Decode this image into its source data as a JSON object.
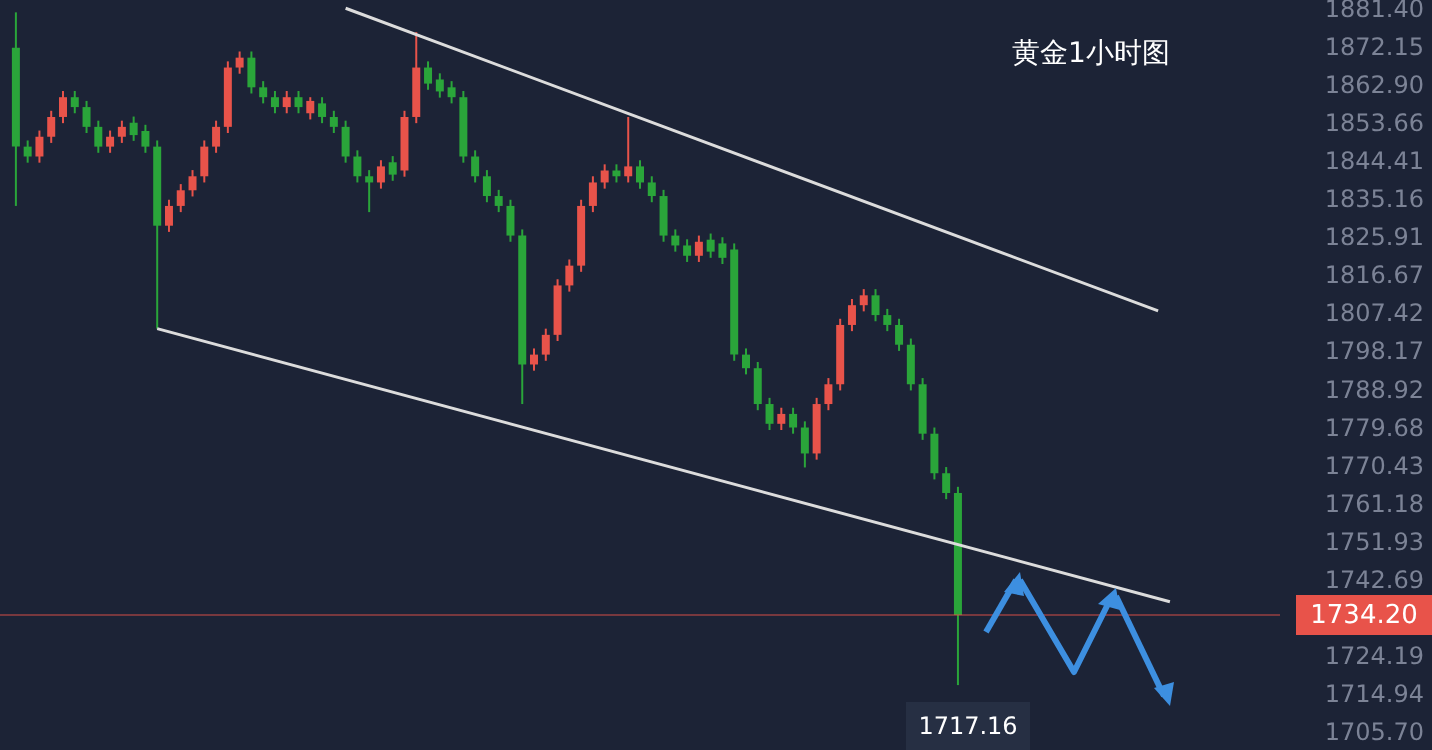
{
  "chart_data": {
    "type": "candlestick",
    "title": "黄金1小时图",
    "categories": [
      null,
      null,
      null,
      null,
      null,
      null,
      null,
      null,
      null,
      null,
      null,
      null,
      null,
      null,
      null,
      null,
      null,
      null,
      null,
      null,
      null,
      null,
      null,
      null,
      null,
      null,
      null,
      null,
      null,
      null,
      null,
      null,
      null,
      null,
      null,
      null,
      null,
      null,
      null,
      null,
      null,
      null,
      null,
      null,
      null,
      null,
      null,
      null,
      null,
      null,
      null,
      null,
      null,
      null,
      null,
      null,
      null,
      null,
      null,
      null,
      null,
      null,
      null,
      null,
      null,
      null,
      null,
      null,
      null,
      null,
      null,
      null,
      null,
      null,
      null,
      null,
      null,
      null,
      null,
      null,
      null,
      null,
      null,
      null,
      null,
      null,
      null,
      null,
      null,
      null,
      null,
      null,
      null,
      null,
      null,
      null,
      null,
      null,
      null,
      null,
      null,
      null,
      null,
      null,
      null,
      null,
      null
    ],
    "ohlc": [
      [
        1871.9,
        1880.5,
        1833.5,
        1847.9
      ],
      [
        1847.9,
        1849.4,
        1844.0,
        1845.5
      ],
      [
        1845.5,
        1851.8,
        1844.0,
        1850.3
      ],
      [
        1850.3,
        1856.6,
        1848.8,
        1855.1
      ],
      [
        1855.1,
        1861.4,
        1853.6,
        1859.9
      ],
      [
        1859.9,
        1861.4,
        1856.0,
        1857.5
      ],
      [
        1857.5,
        1859.0,
        1851.2,
        1852.7
      ],
      [
        1852.7,
        1854.2,
        1846.4,
        1847.9
      ],
      [
        1847.9,
        1851.8,
        1846.4,
        1850.3
      ],
      [
        1850.3,
        1854.2,
        1848.8,
        1852.7
      ],
      [
        1853.7,
        1855.2,
        1849.3,
        1850.7
      ],
      [
        1851.7,
        1853.2,
        1846.4,
        1847.9
      ],
      [
        1847.9,
        1849.4,
        1803.7,
        1828.7
      ],
      [
        1828.7,
        1835.0,
        1827.2,
        1833.5
      ],
      [
        1833.5,
        1838.8,
        1832.0,
        1837.3
      ],
      [
        1837.3,
        1842.2,
        1835.8,
        1840.7
      ],
      [
        1840.7,
        1849.4,
        1839.2,
        1847.9
      ],
      [
        1847.9,
        1854.2,
        1846.4,
        1852.7
      ],
      [
        1852.7,
        1868.6,
        1851.2,
        1867.1
      ],
      [
        1867.1,
        1871.0,
        1865.6,
        1869.5
      ],
      [
        1869.5,
        1871.0,
        1860.8,
        1862.3
      ],
      [
        1862.3,
        1863.8,
        1858.4,
        1859.9
      ],
      [
        1859.9,
        1861.4,
        1856.0,
        1857.5
      ],
      [
        1857.5,
        1861.4,
        1856.0,
        1859.9
      ],
      [
        1859.9,
        1861.4,
        1856.0,
        1857.5
      ],
      [
        1856.0,
        1859.9,
        1854.5,
        1859.0
      ],
      [
        1858.4,
        1859.9,
        1853.6,
        1855.1
      ],
      [
        1855.1,
        1856.6,
        1851.2,
        1852.7
      ],
      [
        1852.7,
        1854.2,
        1844.0,
        1845.5
      ],
      [
        1845.5,
        1847.0,
        1839.2,
        1840.7
      ],
      [
        1840.7,
        1842.2,
        1832.0,
        1839.2
      ],
      [
        1839.2,
        1844.6,
        1837.7,
        1843.1
      ],
      [
        1844.1,
        1845.6,
        1839.6,
        1841.1
      ],
      [
        1842.1,
        1856.6,
        1840.6,
        1855.1
      ],
      [
        1855.1,
        1875.7,
        1853.6,
        1867.1
      ],
      [
        1867.1,
        1868.6,
        1861.7,
        1863.2
      ],
      [
        1864.2,
        1865.7,
        1859.8,
        1861.3
      ],
      [
        1862.3,
        1863.8,
        1858.4,
        1859.9
      ],
      [
        1859.9,
        1861.4,
        1844.0,
        1845.5
      ],
      [
        1845.5,
        1847.0,
        1839.2,
        1840.7
      ],
      [
        1840.7,
        1842.2,
        1834.4,
        1835.9
      ],
      [
        1835.9,
        1837.4,
        1832.0,
        1833.5
      ],
      [
        1833.5,
        1835.0,
        1824.8,
        1826.3
      ],
      [
        1826.3,
        1827.8,
        1785.4,
        1795.0
      ],
      [
        1795.0,
        1798.9,
        1793.5,
        1797.4
      ],
      [
        1797.4,
        1803.7,
        1795.9,
        1802.2
      ],
      [
        1802.2,
        1815.7,
        1800.7,
        1814.2
      ],
      [
        1814.2,
        1820.5,
        1812.7,
        1819.0
      ],
      [
        1819.0,
        1835.0,
        1817.5,
        1833.5
      ],
      [
        1833.5,
        1840.7,
        1832.0,
        1839.2
      ],
      [
        1839.2,
        1843.6,
        1837.7,
        1842.1
      ],
      [
        1842.1,
        1843.6,
        1839.2,
        1840.7
      ],
      [
        1840.7,
        1855.1,
        1839.2,
        1843.1
      ],
      [
        1843.1,
        1844.6,
        1837.7,
        1839.2
      ],
      [
        1839.2,
        1840.7,
        1834.4,
        1835.9
      ],
      [
        1835.9,
        1837.4,
        1824.8,
        1826.3
      ],
      [
        1826.3,
        1827.8,
        1822.4,
        1823.9
      ],
      [
        1823.9,
        1825.4,
        1819.9,
        1821.4
      ],
      [
        1821.4,
        1826.3,
        1819.9,
        1824.8
      ],
      [
        1825.3,
        1826.8,
        1820.9,
        1822.4
      ],
      [
        1824.4,
        1825.9,
        1819.4,
        1820.9
      ],
      [
        1822.9,
        1824.4,
        1795.9,
        1797.4
      ],
      [
        1797.4,
        1798.9,
        1792.6,
        1794.1
      ],
      [
        1794.1,
        1795.6,
        1783.9,
        1785.4
      ],
      [
        1785.4,
        1786.9,
        1779.1,
        1780.6
      ],
      [
        1780.6,
        1784.5,
        1779.1,
        1783.0
      ],
      [
        1783.0,
        1784.5,
        1778.2,
        1779.7
      ],
      [
        1779.7,
        1781.2,
        1770.0,
        1773.4
      ],
      [
        1773.4,
        1786.9,
        1771.9,
        1785.4
      ],
      [
        1785.4,
        1791.7,
        1783.9,
        1790.2
      ],
      [
        1790.2,
        1806.1,
        1788.7,
        1804.6
      ],
      [
        1804.6,
        1810.9,
        1803.1,
        1809.4
      ],
      [
        1809.4,
        1813.3,
        1807.9,
        1811.8
      ],
      [
        1811.8,
        1813.3,
        1805.5,
        1807.0
      ],
      [
        1807.0,
        1808.5,
        1803.1,
        1804.6
      ],
      [
        1804.6,
        1806.1,
        1798.3,
        1799.8
      ],
      [
        1799.8,
        1801.3,
        1788.7,
        1790.2
      ],
      [
        1790.2,
        1791.7,
        1776.7,
        1778.2
      ],
      [
        1778.2,
        1779.7,
        1767.1,
        1768.6
      ],
      [
        1768.6,
        1770.1,
        1762.3,
        1763.8
      ],
      [
        1763.8,
        1765.3,
        1717.16,
        1734.2
      ],
      null,
      null,
      null,
      null,
      null,
      null,
      null,
      null,
      null,
      null,
      null,
      null,
      null,
      null,
      null,
      null,
      null,
      null,
      null,
      null,
      null,
      null,
      null,
      null,
      null,
      null
    ],
    "colors": [
      "#2aa53a",
      "#2aa53a",
      "#e8534a",
      "#e8534a",
      "#e8534a",
      "#2aa53a",
      "#2aa53a",
      "#2aa53a",
      "#e8534a",
      "#e8534a",
      "#2aa53a",
      "#2aa53a",
      "#2aa53a",
      "#e8534a",
      "#e8534a",
      "#e8534a",
      "#e8534a",
      "#e8534a",
      "#e8534a",
      "#e8534a",
      "#2aa53a",
      "#2aa53a",
      "#2aa53a",
      "#e8534a",
      "#2aa53a",
      "#e8534a",
      "#2aa53a",
      "#2aa53a",
      "#2aa53a",
      "#2aa53a",
      "#2aa53a",
      "#e8534a",
      "#2aa53a",
      "#e8534a",
      "#e8534a",
      "#2aa53a",
      "#2aa53a",
      "#2aa53a",
      "#2aa53a",
      "#2aa53a",
      "#2aa53a",
      "#2aa53a",
      "#2aa53a",
      "#2aa53a",
      "#e8534a",
      "#e8534a",
      "#e8534a",
      "#e8534a",
      "#e8534a",
      "#e8534a",
      "#e8534a",
      "#2aa53a",
      "#e8534a",
      "#2aa53a",
      "#2aa53a",
      "#2aa53a",
      "#2aa53a",
      "#2aa53a",
      "#e8534a",
      "#2aa53a",
      "#2aa53a",
      "#2aa53a",
      "#2aa53a",
      "#2aa53a",
      "#2aa53a",
      "#e8534a",
      "#2aa53a",
      "#2aa53a",
      "#e8534a",
      "#e8534a",
      "#e8534a",
      "#e8534a",
      "#e8534a",
      "#2aa53a",
      "#2aa53a",
      "#2aa53a",
      "#2aa53a",
      "#2aa53a",
      "#2aa53a",
      "#2aa53a",
      "#2aa53a",
      null,
      null,
      null,
      null,
      null,
      null,
      null,
      null,
      null,
      null,
      null,
      null,
      null,
      null,
      null,
      null,
      null,
      null,
      null,
      null,
      null,
      null,
      null,
      null,
      null,
      null
    ],
    "series": [
      {
        "type": "line",
        "color": "#dcdcdc",
        "values": [
          null,
          null,
          null,
          null,
          null,
          null,
          null,
          null,
          null,
          null,
          null,
          null,
          null,
          null,
          null,
          null,
          null,
          null,
          null,
          null,
          null,
          null,
          null,
          null,
          null,
          null,
          null,
          null,
          1881.5,
          null,
          null,
          null,
          null,
          null,
          null,
          null,
          null,
          null,
          null,
          null,
          null,
          null,
          null,
          null,
          null,
          null,
          null,
          null,
          null,
          null,
          null,
          null,
          null,
          null,
          null,
          null,
          null,
          null,
          null,
          null,
          null,
          null,
          null,
          null,
          null,
          null,
          null,
          null,
          null,
          null,
          null,
          null,
          null,
          null,
          null,
          null,
          null,
          null,
          null,
          null,
          null,
          null,
          null,
          null,
          null,
          null,
          null,
          null,
          null,
          null,
          null,
          null,
          null,
          null,
          null,
          null,
          null,
          1808.0,
          null,
          null,
          null,
          null,
          null,
          null,
          null,
          null,
          null
        ]
      },
      {
        "type": "line",
        "color": "#dcdcdc",
        "values": [
          null,
          null,
          null,
          null,
          null,
          null,
          null,
          null,
          null,
          null,
          null,
          null,
          1803.7,
          null,
          null,
          null,
          null,
          null,
          null,
          null,
          null,
          null,
          null,
          null,
          null,
          null,
          null,
          null,
          null,
          null,
          null,
          null,
          null,
          null,
          null,
          null,
          null,
          null,
          null,
          null,
          null,
          null,
          null,
          null,
          null,
          null,
          null,
          null,
          null,
          null,
          null,
          null,
          null,
          null,
          null,
          null,
          null,
          null,
          null,
          null,
          null,
          null,
          null,
          null,
          null,
          null,
          null,
          null,
          null,
          null,
          null,
          null,
          null,
          null,
          null,
          null,
          null,
          null,
          null,
          null,
          null,
          null,
          null,
          null,
          null,
          null,
          null,
          null,
          null,
          null,
          null,
          null,
          null,
          null,
          null,
          null,
          null,
          null,
          1737.4,
          null,
          null,
          null,
          null,
          null,
          null,
          null,
          null
        ]
      }
    ],
    "ylim": [
      1701.4,
      1883.5
    ],
    "yticks": [
      {
        "value": 1881.4,
        "label": "1881.40"
      },
      {
        "value": 1872.15,
        "label": "1872.15"
      },
      {
        "value": 1862.9,
        "label": "1862.90"
      },
      {
        "value": 1853.66,
        "label": "1853.66"
      },
      {
        "value": 1844.41,
        "label": "1844.41"
      },
      {
        "value": 1835.16,
        "label": "1835.16"
      },
      {
        "value": 1825.91,
        "label": "1825.91"
      },
      {
        "value": 1816.67,
        "label": "1816.67"
      },
      {
        "value": 1807.42,
        "label": "1807.42"
      },
      {
        "value": 1798.17,
        "label": "1798.17"
      },
      {
        "value": 1788.92,
        "label": "1788.92"
      },
      {
        "value": 1779.68,
        "label": "1779.68"
      },
      {
        "value": 1770.43,
        "label": "1770.43"
      },
      {
        "value": 1761.18,
        "label": "1761.18"
      },
      {
        "value": 1751.93,
        "label": "1751.93"
      },
      {
        "value": 1742.69,
        "label": "1742.69"
      },
      {
        "value": 1724.19,
        "label": "1724.19"
      },
      {
        "value": 1714.94,
        "label": "1714.94"
      },
      {
        "value": 1705.7,
        "label": "1705.70"
      }
    ],
    "tick_labels": "y",
    "ref_lines": [
      {
        "axis": "y",
        "value": 1734.2,
        "label": "1734.20",
        "color": "#e8534a"
      }
    ],
    "annotations": [
      "1717.16"
    ]
  }
}
